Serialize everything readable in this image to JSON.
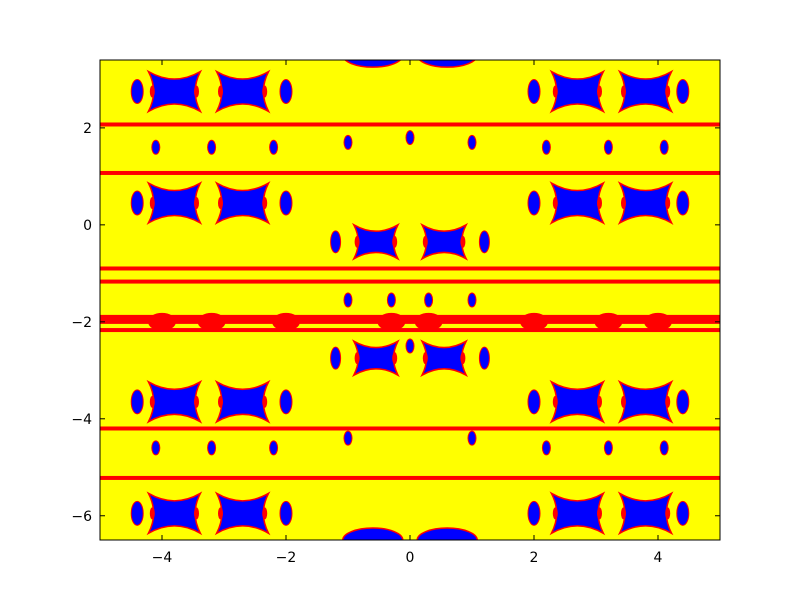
{
  "chart_data": {
    "type": "heatmap",
    "subtype": "filled-contour",
    "title": "",
    "xlabel": "",
    "ylabel": "",
    "xlim": [
      -5,
      5
    ],
    "ylim": [
      -6.5,
      3.4
    ],
    "grid": false,
    "legend": "none",
    "levels": [
      "low",
      "mid",
      "high"
    ],
    "colors": {
      "low": "#0000ff",
      "mid": "#ff0000",
      "high": "#ffff00"
    },
    "x_ticks": [
      {
        "value": -4,
        "label": "−4"
      },
      {
        "value": -2,
        "label": "−2"
      },
      {
        "value": 0,
        "label": "0"
      },
      {
        "value": 2,
        "label": "2"
      },
      {
        "value": 4,
        "label": "4"
      }
    ],
    "y_ticks": [
      {
        "value": 2,
        "label": "2"
      },
      {
        "value": 0,
        "label": "0"
      },
      {
        "value": -2,
        "label": "−2"
      },
      {
        "value": -4,
        "label": "−4"
      },
      {
        "value": -6,
        "label": "−6"
      }
    ],
    "red_bands_y": [
      2.07,
      1.07,
      -0.9,
      -1.17,
      -1.95,
      -2.17,
      -4.2,
      -5.22
    ],
    "blue_lobe_rows_y": [
      2.75,
      0.45,
      -3.65,
      -5.95
    ],
    "blue_lobe_cols_x": [
      -3.8,
      -2.7,
      2.7,
      3.8
    ],
    "center_lobe_rows_y": [
      -0.35,
      -2.75
    ],
    "center_lobe_cols_x": [
      -0.55,
      0.55
    ]
  }
}
